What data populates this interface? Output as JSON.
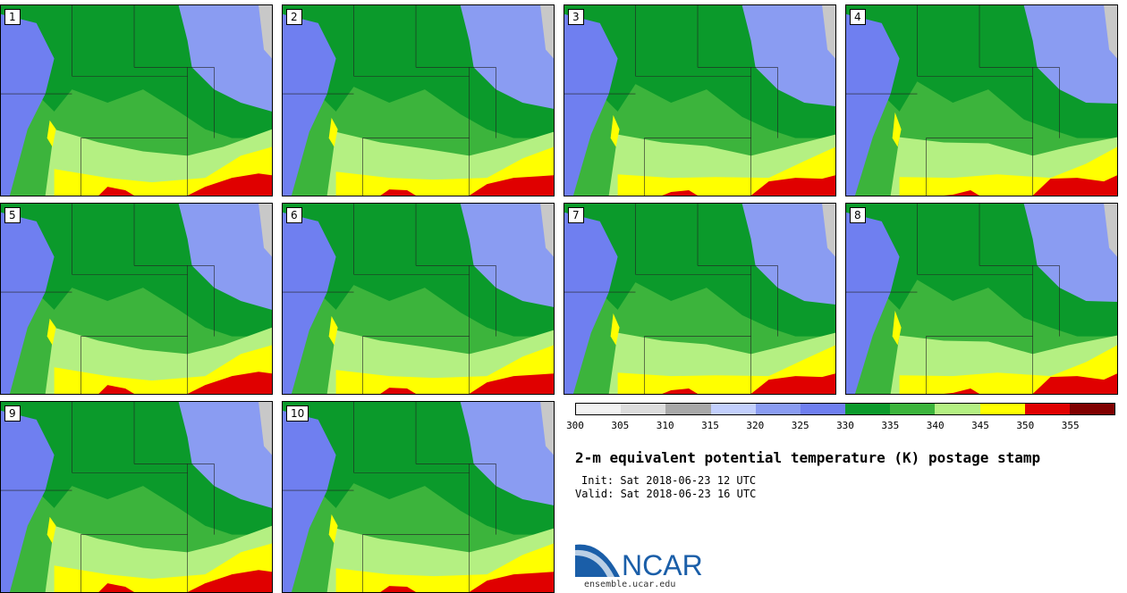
{
  "panels": [
    {
      "label": "1"
    },
    {
      "label": "2"
    },
    {
      "label": "3"
    },
    {
      "label": "4"
    },
    {
      "label": "5"
    },
    {
      "label": "6"
    },
    {
      "label": "7"
    },
    {
      "label": "8"
    },
    {
      "label": "9"
    },
    {
      "label": "10"
    }
  ],
  "colorbar": {
    "ticks": [
      "300",
      "305",
      "310",
      "315",
      "320",
      "325",
      "330",
      "335",
      "340",
      "345",
      "350",
      "355"
    ],
    "colors": [
      "#f2f2f2",
      "#dcdcdc",
      "#a8a8a8",
      "#c2cffc",
      "#8a9cf2",
      "#6f7ff0",
      "#0b9a2b",
      "#3cb43c",
      "#b4f082",
      "#ffff00",
      "#e00000",
      "#800000"
    ]
  },
  "title": "2-m equivalent potential temperature (K) postage stamp",
  "init": "Init: Sat 2018-06-23 12 UTC",
  "valid": "Valid: Sat 2018-06-23 16 UTC",
  "logo": {
    "text": "NCAR",
    "url": "ensemble.ucar.edu"
  },
  "map_colors": {
    "dark_green": "#0b9a2b",
    "green": "#3cb43c",
    "light_green": "#b4f082",
    "yellow": "#ffff00",
    "red": "#e00000",
    "blue": "#6f7ff0",
    "light_blue": "#8a9cf2",
    "water": "#c8c8c8"
  }
}
